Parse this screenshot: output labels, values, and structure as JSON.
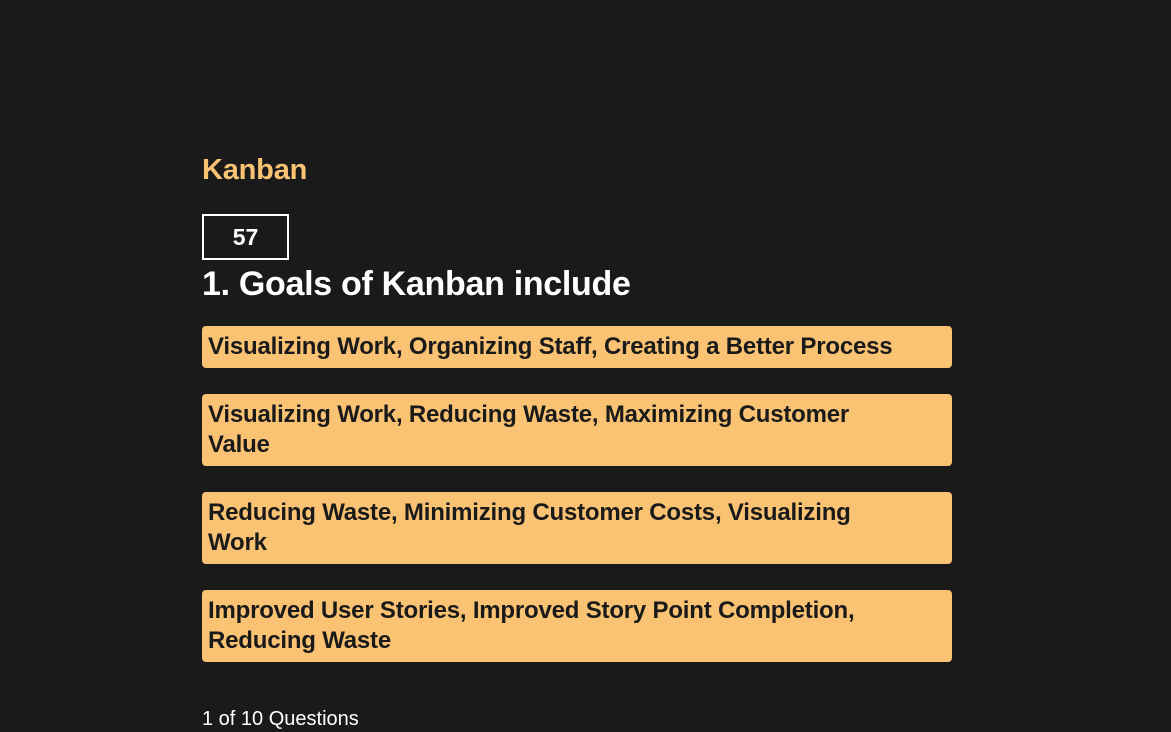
{
  "quiz": {
    "title": "Kanban",
    "timer": "57",
    "question": "1. Goals of Kanban include",
    "answers": [
      "Visualizing Work, Organizing Staff, Creating a Better Process",
      "Visualizing Work, Reducing Waste, Maximizing Customer Value",
      "Reducing Waste, Minimizing Customer Costs, Visualizing Work",
      "Improved User Stories, Improved Story Point Completion, Reducing Waste"
    ],
    "progress": "1 of 10 Questions"
  },
  "colors": {
    "background": "#1a1a1a",
    "accent": "#f9c373",
    "text": "#ffffff"
  }
}
